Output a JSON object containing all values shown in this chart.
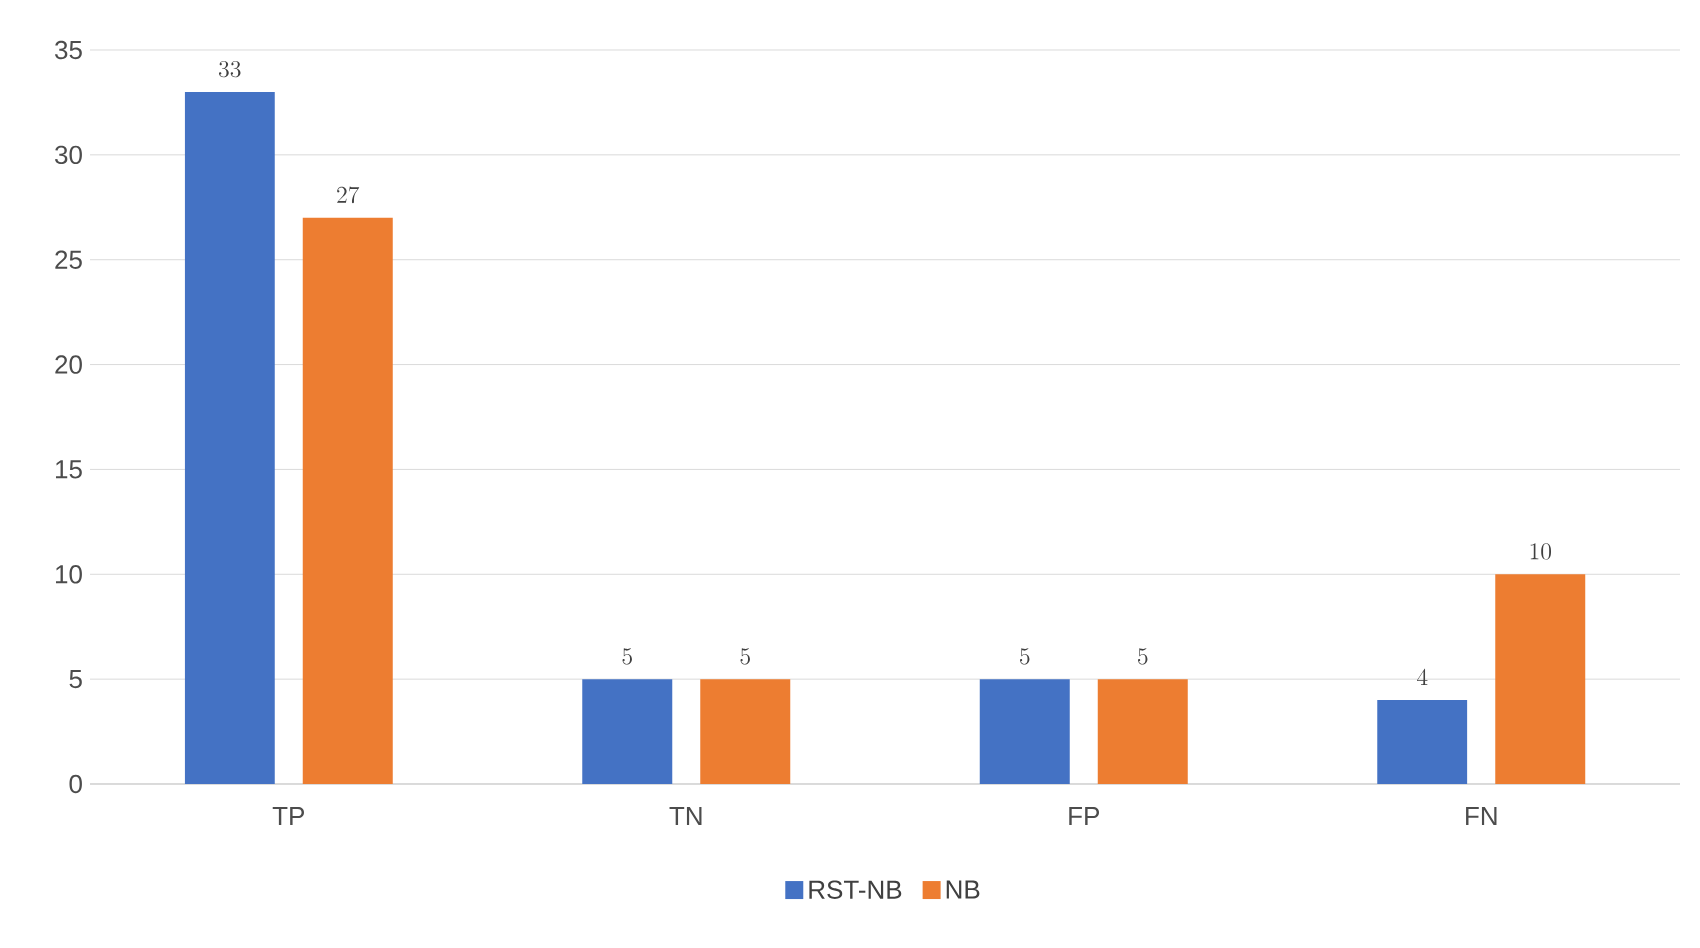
{
  "chart_data": {
    "type": "bar",
    "categories": [
      "TP",
      "TN",
      "FP",
      "FN"
    ],
    "series": [
      {
        "name": "RST-NB",
        "color": "#4472c4",
        "values": [
          33,
          5,
          5,
          4
        ]
      },
      {
        "name": "NB",
        "color": "#ed7d31",
        "values": [
          27,
          5,
          5,
          10
        ]
      }
    ],
    "ylim": [
      0,
      35
    ],
    "yticks": [
      0,
      5,
      10,
      15,
      20,
      25,
      30,
      35
    ],
    "grid": "y",
    "legend": "bottom",
    "data_labels": true
  }
}
